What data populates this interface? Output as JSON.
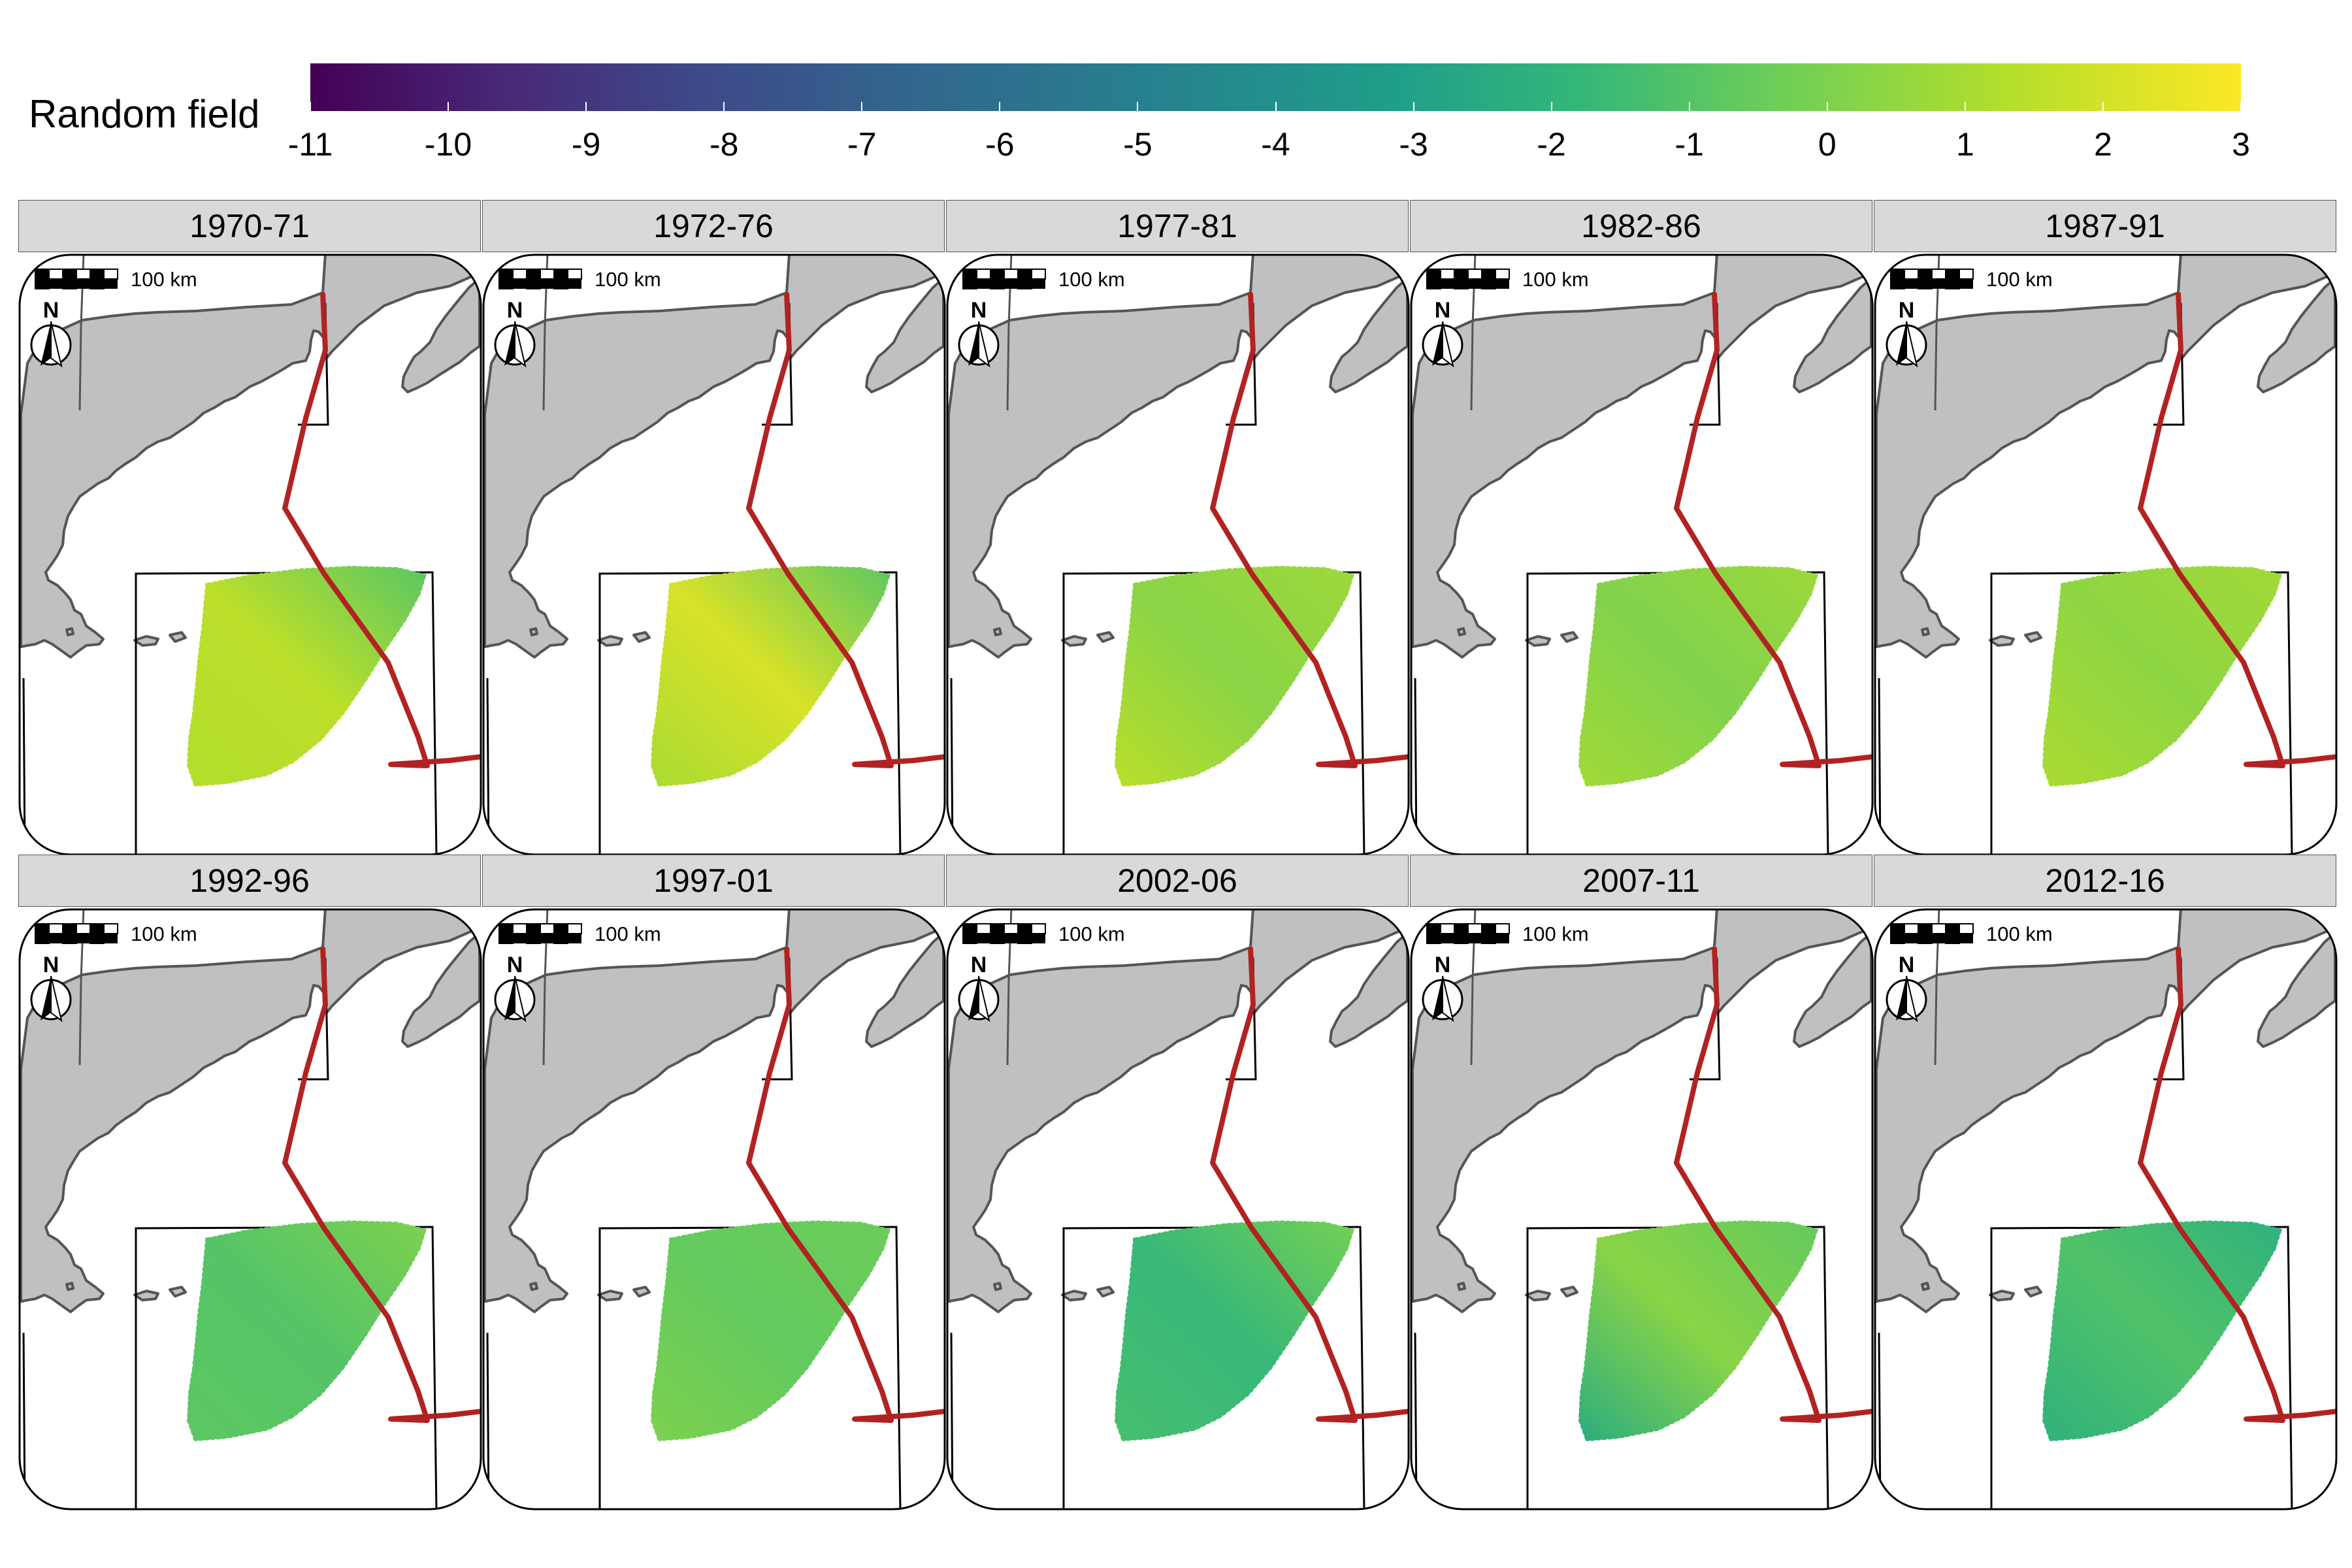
{
  "legend": {
    "title": "Random field",
    "ticks": [
      "-11",
      "-10",
      "-9",
      "-8",
      "-7",
      "-6",
      "-5",
      "-4",
      "-3",
      "-2",
      "-1",
      "0",
      "1",
      "2",
      "3"
    ],
    "range": [
      -11,
      3
    ],
    "palette": "viridis",
    "colors": [
      "#440154",
      "#482878",
      "#3e4989",
      "#31688e",
      "#26828e",
      "#1f9e89",
      "#35b779",
      "#6ece58",
      "#b5de2b",
      "#fde725"
    ]
  },
  "map_common": {
    "scalebar_label": "100 km",
    "north_label": "N",
    "land_color": "#c0c0c0",
    "coast_color": "#555555",
    "boundary_color": "#b22222",
    "box_color": "#000000"
  },
  "panels": [
    {
      "label": "1970-71",
      "field": {
        "center": 1.6,
        "east": -0.6,
        "west": 1.4
      }
    },
    {
      "label": "1972-76",
      "field": {
        "center": 2.2,
        "east": -0.5,
        "west": 1.2
      }
    },
    {
      "label": "1977-81",
      "field": {
        "center": 0.5,
        "east": 0.9,
        "west": 1.5
      }
    },
    {
      "label": "1982-86",
      "field": {
        "center": 0.3,
        "east": 0.9,
        "west": 1.0
      }
    },
    {
      "label": "1987-91",
      "field": {
        "center": 0.6,
        "east": 1.0,
        "west": 1.2
      }
    },
    {
      "label": "1992-96",
      "field": {
        "center": -0.8,
        "east": 0.2,
        "west": -0.6
      }
    },
    {
      "label": "1997-01",
      "field": {
        "center": -0.4,
        "east": -0.2,
        "west": 0.2
      }
    },
    {
      "label": "2002-06",
      "field": {
        "center": -1.6,
        "east": 0.0,
        "west": -1.2
      }
    },
    {
      "label": "2007-11",
      "field": {
        "center": 0.5,
        "east": -0.4,
        "west": -2.2
      }
    },
    {
      "label": "2012-16",
      "field": {
        "center": -0.9,
        "east": -2.0,
        "west": -2.0
      }
    }
  ]
}
